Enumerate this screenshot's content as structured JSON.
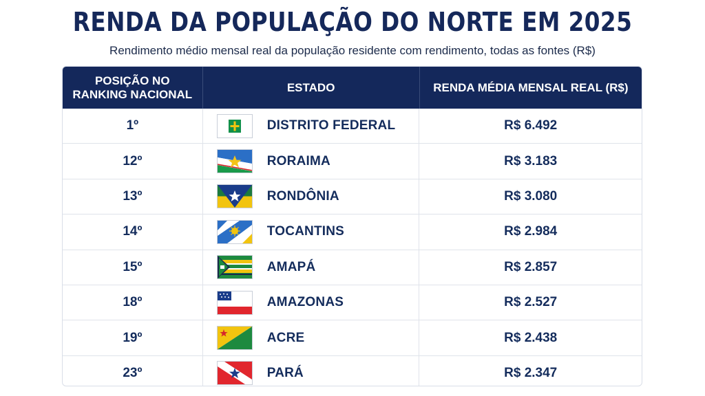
{
  "title": "RENDA DA POPULAÇÃO DO NORTE EM 2025",
  "subtitle": "Rendimento médio mensal real da população residente com rendimento, todas as fontes (R$)",
  "table": {
    "headers": {
      "rank": "POSIÇÃO NO\nRANKING NACIONAL",
      "state": "ESTADO",
      "income": "RENDA MÉDIA MENSAL REAL (R$)"
    },
    "rows": [
      {
        "rank": "1º",
        "state": "DISTRITO FEDERAL",
        "income": "R$ 6.492",
        "flag": "distrito-federal-flag-icon"
      },
      {
        "rank": "12º",
        "state": "RORAIMA",
        "income": "R$ 3.183",
        "flag": "roraima-flag-icon"
      },
      {
        "rank": "13º",
        "state": "RONDÔNIA",
        "income": "R$ 3.080",
        "flag": "rondonia-flag-icon"
      },
      {
        "rank": "14º",
        "state": "TOCANTINS",
        "income": "R$ 2.984",
        "flag": "tocantins-flag-icon"
      },
      {
        "rank": "15º",
        "state": "AMAPÁ",
        "income": "R$ 2.857",
        "flag": "amapa-flag-icon"
      },
      {
        "rank": "18º",
        "state": "AMAZONAS",
        "income": "R$ 2.527",
        "flag": "amazonas-flag-icon"
      },
      {
        "rank": "19º",
        "state": "ACRE",
        "income": "R$ 2.438",
        "flag": "acre-flag-icon"
      },
      {
        "rank": "23º",
        "state": "PARÁ",
        "income": "R$ 2.347",
        "flag": "para-flag-icon"
      }
    ]
  },
  "colors": {
    "header_bg": "#14285b",
    "text": "#142c5c",
    "border": "#dfe3ea"
  }
}
